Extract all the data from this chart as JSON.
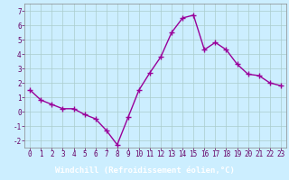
{
  "x": [
    0,
    1,
    2,
    3,
    4,
    5,
    6,
    7,
    8,
    9,
    10,
    11,
    12,
    13,
    14,
    15,
    16,
    17,
    18,
    19,
    20,
    21,
    22,
    23
  ],
  "y": [
    1.5,
    0.8,
    0.5,
    0.2,
    0.2,
    -0.2,
    -0.5,
    -1.3,
    -2.3,
    -0.4,
    1.5,
    2.7,
    3.8,
    5.5,
    6.5,
    6.7,
    4.3,
    4.8,
    4.3,
    3.3,
    2.6,
    2.5,
    2.0,
    1.8
  ],
  "line_color": "#990099",
  "marker": "+",
  "markersize": 4,
  "markeredgewidth": 1.0,
  "linewidth": 1.0,
  "bg_color": "#cceeff",
  "plot_bg_color": "#cceeff",
  "grid_color": "#aacccc",
  "xlabel": "Windchill (Refroidissement éolien,°C)",
  "xlim": [
    -0.5,
    23.5
  ],
  "ylim": [
    -2.5,
    7.5
  ],
  "yticks": [
    -2,
    -1,
    0,
    1,
    2,
    3,
    4,
    5,
    6,
    7
  ],
  "xticks": [
    0,
    1,
    2,
    3,
    4,
    5,
    6,
    7,
    8,
    9,
    10,
    11,
    12,
    13,
    14,
    15,
    16,
    17,
    18,
    19,
    20,
    21,
    22,
    23
  ],
  "tick_label_fontsize": 5.5,
  "xlabel_fontsize": 6.5,
  "bottom_bar_color": "#880088",
  "bottom_bar_text_color": "#ffffff",
  "spine_color": "#888888"
}
